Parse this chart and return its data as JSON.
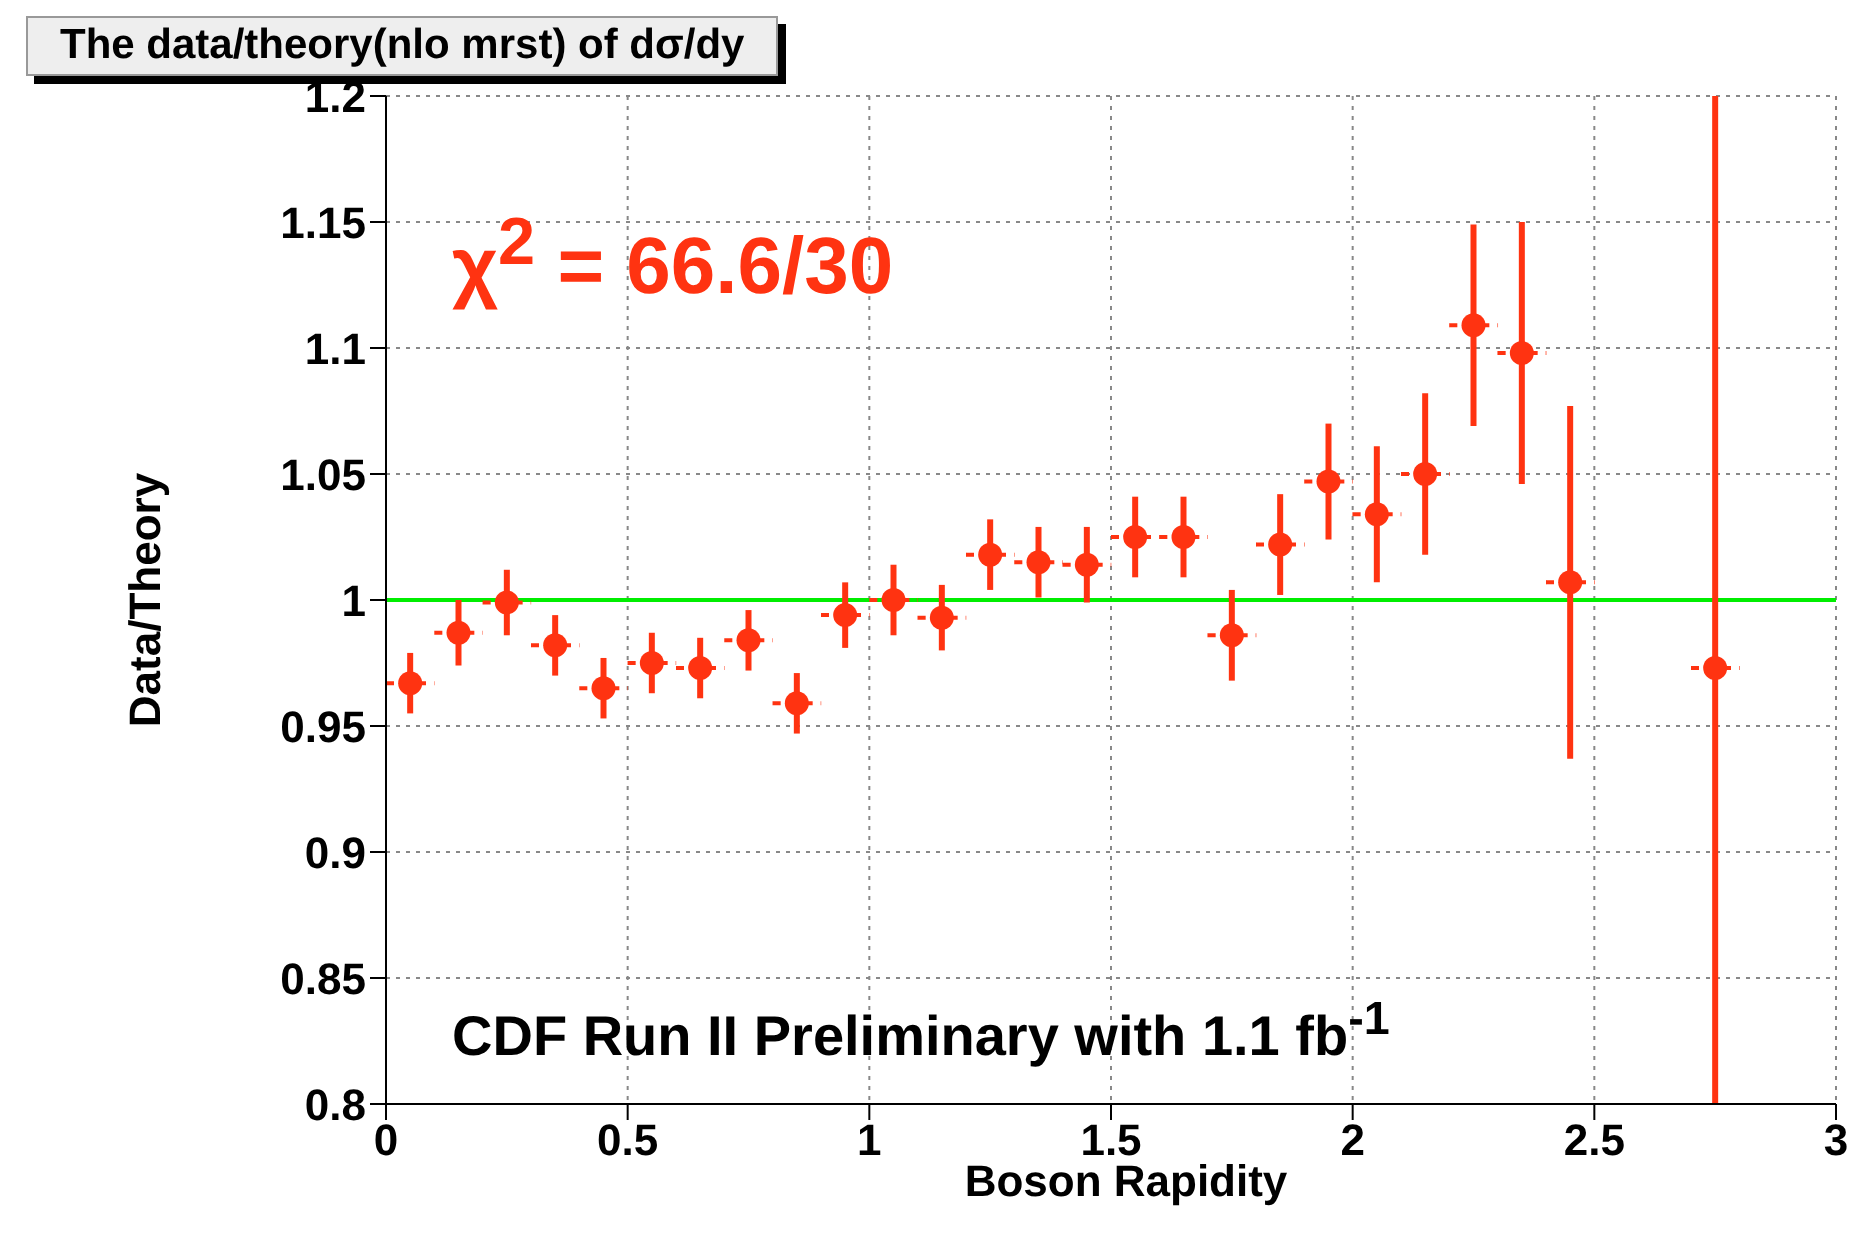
{
  "chart_data": {
    "type": "scatter",
    "title": "The data/theory(nlo mrst) of dσ/dy",
    "xlabel": "Boson Rapidity",
    "ylabel": "Data/Theory",
    "x": [
      0.05,
      0.15,
      0.25,
      0.35,
      0.45,
      0.55,
      0.65,
      0.75,
      0.85,
      0.95,
      1.05,
      1.15,
      1.25,
      1.35,
      1.45,
      1.55,
      1.65,
      1.75,
      1.85,
      1.95,
      2.05,
      2.15,
      2.25,
      2.35,
      2.45,
      2.75
    ],
    "series": [
      {
        "color": "#ff3311",
        "values": [
          0.967,
          0.987,
          0.999,
          0.982,
          0.965,
          0.975,
          0.973,
          0.984,
          0.959,
          0.994,
          1.0,
          0.993,
          1.018,
          1.015,
          1.014,
          1.025,
          1.025,
          0.986,
          1.022,
          1.047,
          1.034,
          1.05,
          1.109,
          1.098,
          1.007,
          0.973
        ],
        "errors": [
          0.012,
          0.013,
          0.013,
          0.012,
          0.012,
          0.012,
          0.012,
          0.012,
          0.012,
          0.013,
          0.014,
          0.013,
          0.014,
          0.014,
          0.015,
          0.016,
          0.016,
          0.018,
          0.02,
          0.023,
          0.027,
          0.032,
          0.04,
          0.052,
          0.07,
          [
            0.8,
            1.2
          ]
        ],
        "xerrors": [
          0.05,
          0.05,
          0.05,
          0.05,
          0.05,
          0.05,
          0.05,
          0.05,
          0.05,
          0.05,
          0.05,
          0.05,
          0.05,
          0.05,
          0.05,
          0.05,
          0.05,
          0.05,
          0.05,
          0.05,
          0.05,
          0.05,
          0.05,
          0.05,
          0.05,
          0.05
        ]
      }
    ],
    "xlim": [
      0,
      3
    ],
    "xticks": [
      0,
      0.5,
      1,
      1.5,
      2,
      2.5,
      3
    ],
    "ylim": [
      0.8,
      1.2
    ],
    "yticks": [
      0.8,
      0.85,
      0.9,
      0.95,
      1,
      1.05,
      1.1,
      1.15,
      1.2
    ],
    "ref_lines": [
      {
        "axis": "y",
        "value": 1,
        "color": "#00ee00"
      }
    ],
    "annotations": [
      "χ$^{2}$ = 66.6/30",
      "CDF Run II Preliminary with 1.1 fb$^{-1}$"
    ],
    "grid": true,
    "marker": "circle"
  }
}
